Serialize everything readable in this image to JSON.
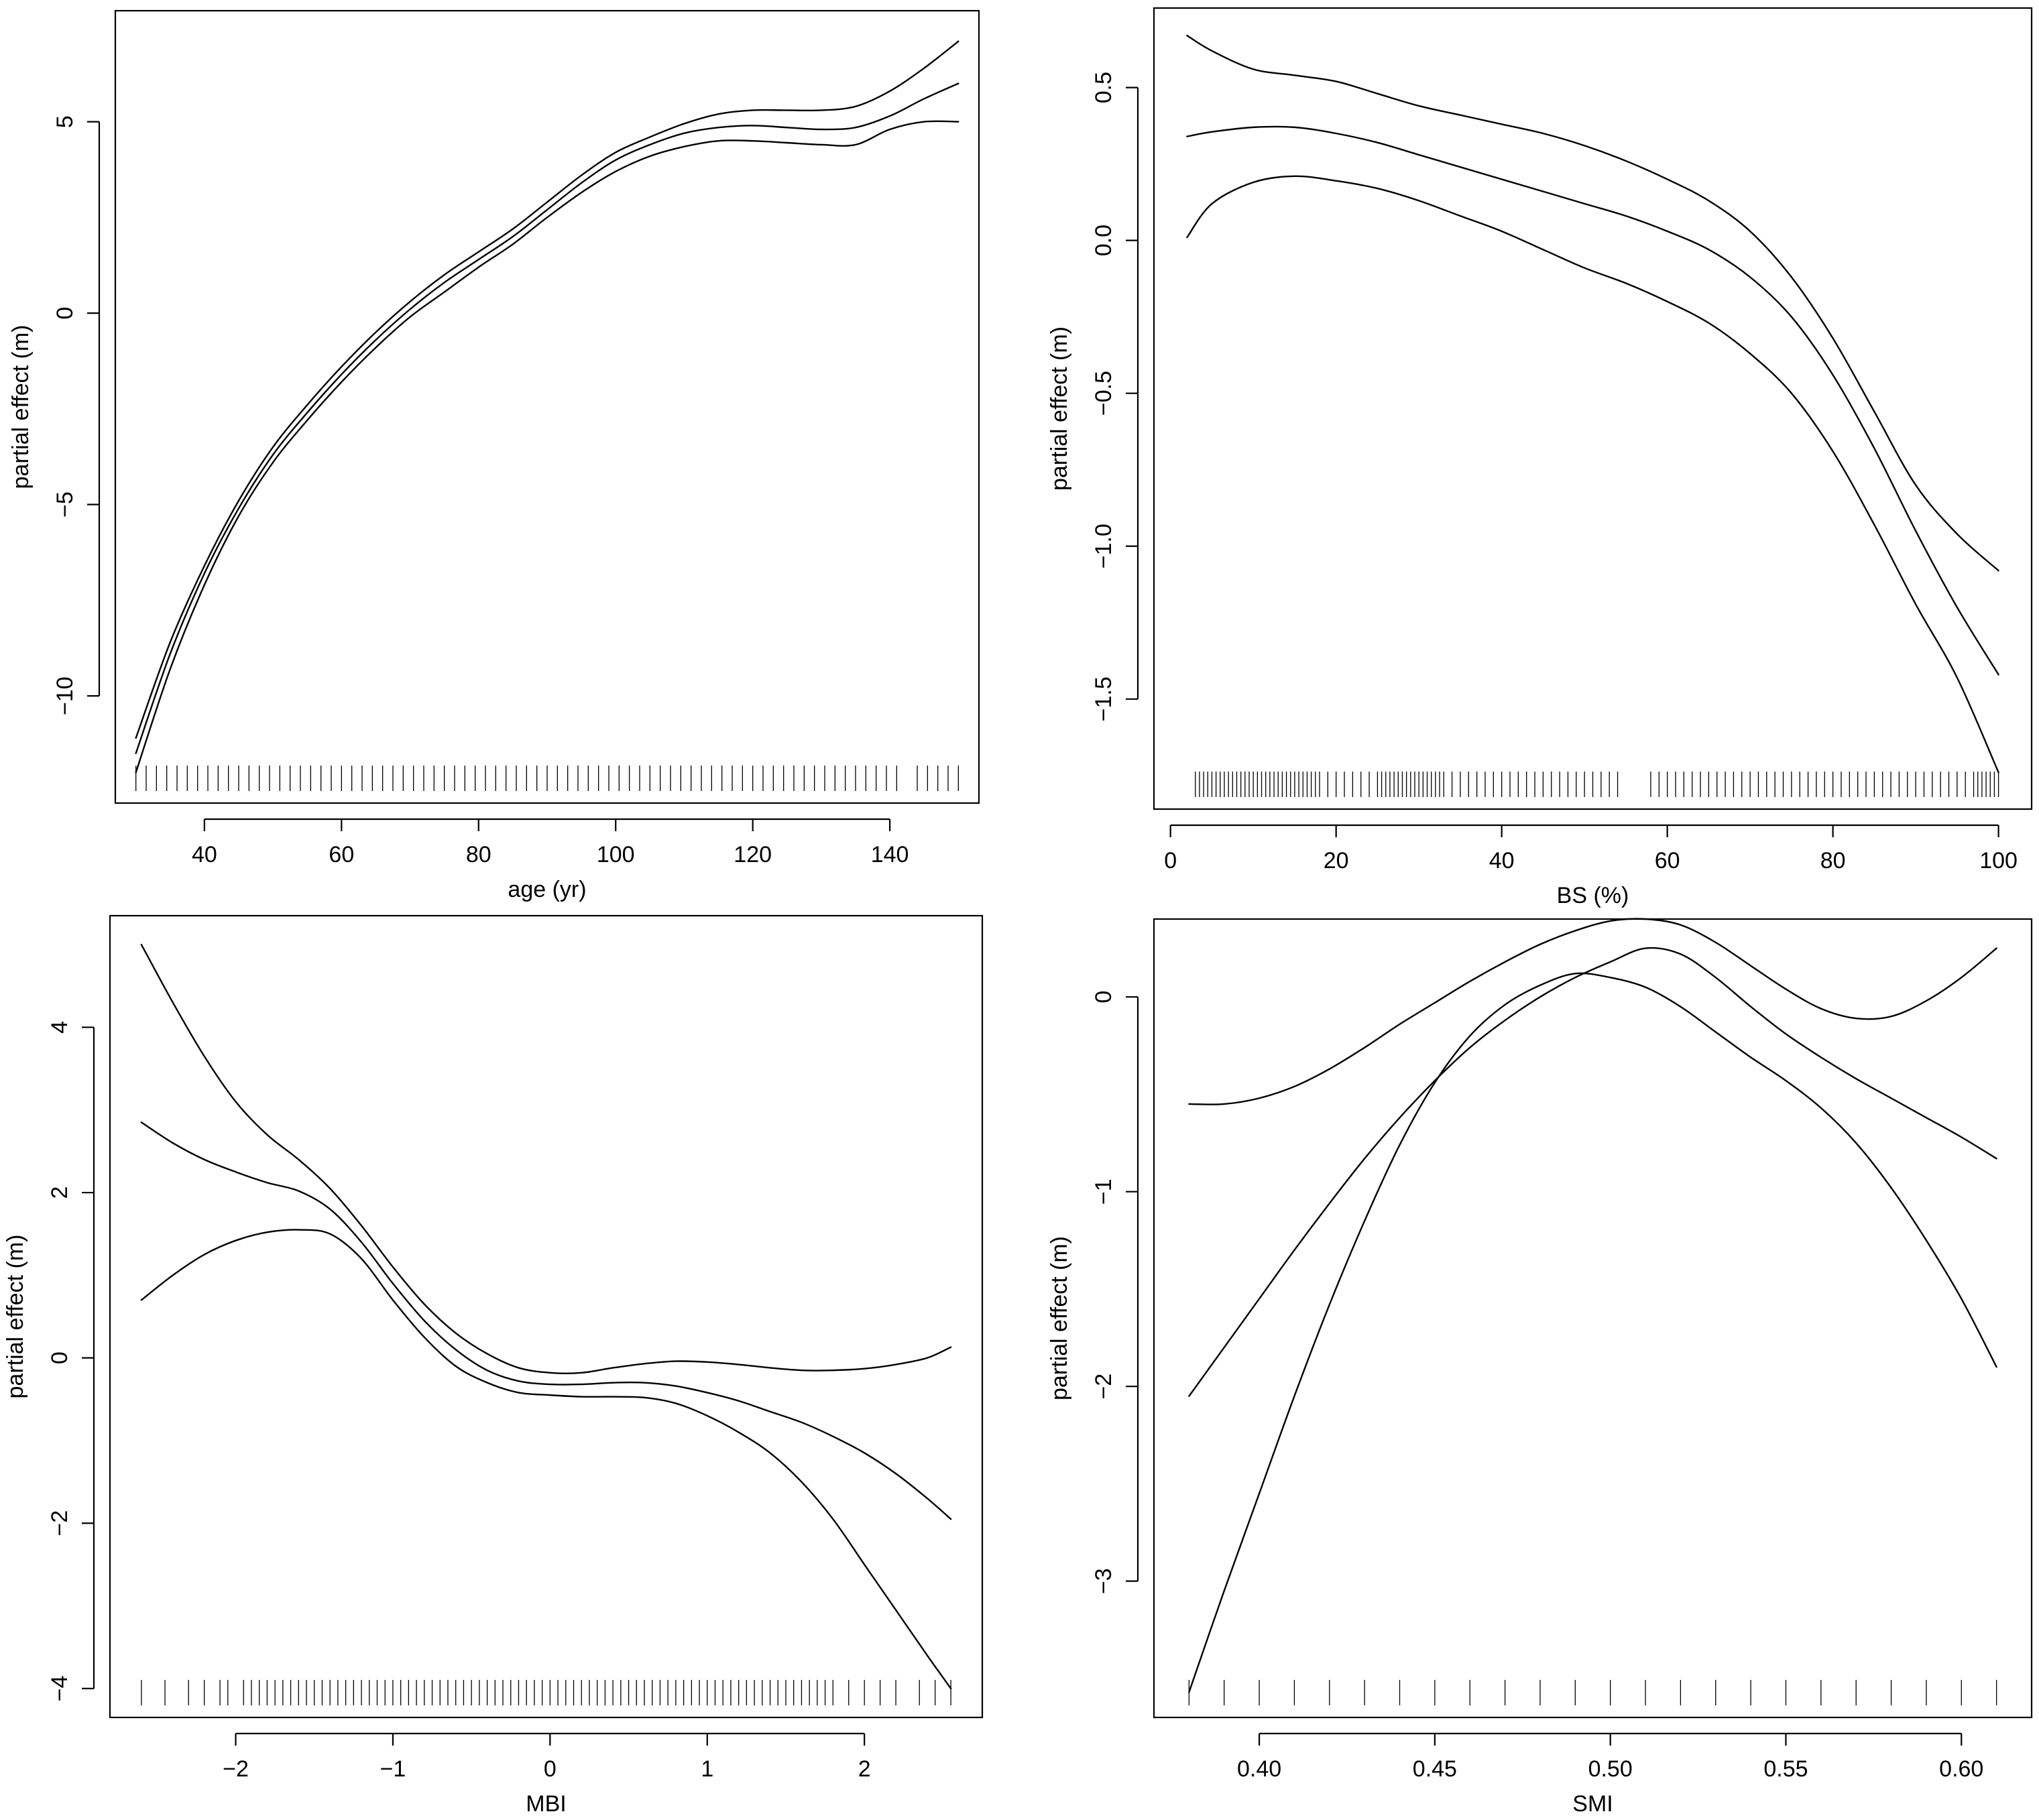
{
  "chart_data": [
    {
      "type": "line",
      "xlabel": "age (yr)",
      "ylabel": "partial effect (m)",
      "xlim": [
        27,
        153
      ],
      "ylim": [
        -12.8,
        7.9
      ],
      "xticks": [
        40,
        60,
        80,
        100,
        120,
        140
      ],
      "yticks": [
        -10,
        -5,
        0,
        5
      ],
      "xtick_labels": [
        "40",
        "60",
        "80",
        "100",
        "120",
        "140"
      ],
      "ytick_labels": [
        "−10",
        "−5",
        "0",
        "5"
      ],
      "series": [
        {
          "name": "upper",
          "x": [
            30,
            35,
            40,
            45,
            50,
            55,
            60,
            65,
            70,
            75,
            80,
            85,
            90,
            95,
            100,
            105,
            110,
            115,
            120,
            125,
            130,
            135,
            140,
            145,
            150
          ],
          "y": [
            -11.1,
            -8.6,
            -6.6,
            -4.9,
            -3.5,
            -2.4,
            -1.4,
            -0.5,
            0.3,
            1.0,
            1.6,
            2.2,
            2.9,
            3.6,
            4.2,
            4.6,
            4.95,
            5.2,
            5.3,
            5.3,
            5.3,
            5.4,
            5.8,
            6.4,
            7.1
          ]
        },
        {
          "name": "estimate",
          "x": [
            30,
            35,
            40,
            45,
            50,
            55,
            60,
            65,
            70,
            75,
            80,
            85,
            90,
            95,
            100,
            105,
            110,
            115,
            120,
            125,
            130,
            135,
            140,
            145,
            150
          ],
          "y": [
            -11.5,
            -8.9,
            -6.8,
            -5.1,
            -3.7,
            -2.6,
            -1.6,
            -0.7,
            0.1,
            0.8,
            1.4,
            2.0,
            2.7,
            3.4,
            4.0,
            4.4,
            4.7,
            4.85,
            4.9,
            4.85,
            4.8,
            4.85,
            5.15,
            5.6,
            6.0
          ]
        },
        {
          "name": "lower",
          "x": [
            30,
            35,
            40,
            45,
            50,
            55,
            60,
            65,
            70,
            75,
            80,
            85,
            90,
            95,
            100,
            105,
            110,
            115,
            120,
            125,
            130,
            135,
            140,
            145,
            150
          ],
          "y": [
            -12.0,
            -9.3,
            -7.1,
            -5.3,
            -3.9,
            -2.8,
            -1.8,
            -0.9,
            -0.1,
            0.55,
            1.2,
            1.8,
            2.5,
            3.15,
            3.7,
            4.1,
            4.35,
            4.5,
            4.5,
            4.45,
            4.4,
            4.4,
            4.8,
            5.0,
            5.0
          ]
        }
      ],
      "rug": [
        30,
        31.5,
        33,
        34.5,
        36,
        37.5,
        39,
        40.5,
        42,
        43.5,
        45,
        46.5,
        48,
        49.5,
        51,
        52.5,
        54,
        55.5,
        57,
        58.5,
        60,
        61.5,
        63,
        64.5,
        66,
        67.5,
        69,
        70.5,
        72,
        73.5,
        75,
        76.5,
        78,
        79.5,
        81,
        82.5,
        84,
        85.5,
        87,
        88.5,
        90,
        91.5,
        93,
        94.5,
        96,
        97.5,
        99,
        100.5,
        102,
        103.5,
        105,
        106.5,
        108,
        109.5,
        111,
        112.5,
        114,
        115.5,
        117,
        118.5,
        120,
        121.5,
        123,
        124.5,
        126,
        127.5,
        129,
        130.5,
        132,
        133.5,
        135,
        136.5,
        138,
        139.5,
        141,
        144,
        145.5,
        147,
        148.5,
        150
      ]
    },
    {
      "type": "line",
      "xlabel": "BS (%)",
      "ylabel": "partial effect (m)",
      "xlim": [
        -2,
        104
      ],
      "ylim": [
        -1.86,
        0.76
      ],
      "xticks": [
        0,
        20,
        40,
        60,
        80,
        100
      ],
      "yticks": [
        -1.5,
        -1.0,
        -0.5,
        0.0,
        0.5
      ],
      "xtick_labels": [
        "0",
        "20",
        "40",
        "60",
        "80",
        "100"
      ],
      "ytick_labels": [
        "−1.5",
        "−1.0",
        "−0.5",
        "0.0",
        "0.5"
      ],
      "series": [
        {
          "name": "upper",
          "x": [
            2,
            5,
            10,
            15,
            20,
            25,
            30,
            35,
            40,
            45,
            50,
            55,
            60,
            65,
            70,
            75,
            80,
            85,
            90,
            95,
            100
          ],
          "y": [
            0.67,
            0.62,
            0.56,
            0.54,
            0.52,
            0.48,
            0.44,
            0.41,
            0.38,
            0.35,
            0.31,
            0.26,
            0.2,
            0.13,
            0.03,
            -0.12,
            -0.32,
            -0.56,
            -0.8,
            -0.96,
            -1.08
          ]
        },
        {
          "name": "estimate",
          "x": [
            2,
            5,
            10,
            15,
            20,
            25,
            30,
            35,
            40,
            45,
            50,
            55,
            60,
            65,
            70,
            75,
            80,
            85,
            90,
            95,
            100
          ],
          "y": [
            0.34,
            0.355,
            0.37,
            0.37,
            0.35,
            0.32,
            0.28,
            0.24,
            0.2,
            0.16,
            0.12,
            0.08,
            0.03,
            -0.03,
            -0.12,
            -0.25,
            -0.44,
            -0.68,
            -0.95,
            -1.2,
            -1.42
          ]
        },
        {
          "name": "lower",
          "x": [
            2,
            5,
            10,
            15,
            20,
            25,
            30,
            35,
            40,
            45,
            50,
            55,
            60,
            65,
            70,
            75,
            80,
            85,
            90,
            95,
            100
          ],
          "y": [
            0.01,
            0.12,
            0.19,
            0.21,
            0.195,
            0.17,
            0.13,
            0.08,
            0.03,
            -0.03,
            -0.09,
            -0.14,
            -0.2,
            -0.27,
            -0.37,
            -0.5,
            -0.69,
            -0.93,
            -1.19,
            -1.43,
            -1.74
          ]
        }
      ],
      "rug": [
        3,
        3.5,
        4,
        4.5,
        5,
        5.5,
        6,
        6.5,
        7,
        7.5,
        8,
        8.5,
        9,
        9.5,
        10,
        10.5,
        11,
        11.5,
        12,
        12.5,
        13,
        13.5,
        14,
        14.5,
        15,
        15.5,
        16,
        16.5,
        17,
        17.5,
        18,
        19,
        20,
        21,
        22,
        23,
        24,
        25,
        25.5,
        26,
        26.5,
        27,
        27.5,
        28,
        28.5,
        29,
        29.5,
        30,
        30.5,
        31,
        31.5,
        32,
        32.5,
        33,
        34,
        35,
        36,
        37,
        38,
        39,
        40,
        41,
        42,
        43,
        44,
        45,
        46,
        47,
        48,
        49,
        50,
        51,
        52,
        53,
        54,
        58,
        59,
        60,
        61,
        62,
        63,
        64,
        65,
        66,
        67,
        68,
        69,
        70,
        71,
        72,
        73,
        74,
        75,
        76,
        77,
        78,
        79,
        80,
        81,
        82,
        83,
        84,
        85,
        86,
        87,
        88,
        89,
        90,
        91,
        92,
        93,
        94,
        95,
        96,
        97,
        97.5,
        98,
        98.5,
        99,
        99.5,
        100
      ]
    },
    {
      "type": "line",
      "xlabel": "MBI",
      "ylabel": "partial effect (m)",
      "xlim": [
        -2.8,
        2.75
      ],
      "ylim": [
        -4.35,
        5.35
      ],
      "xticks": [
        -2,
        -1,
        0,
        1,
        2
      ],
      "yticks": [
        -4,
        -2,
        0,
        2,
        4
      ],
      "xtick_labels": [
        "−2",
        "−1",
        "0",
        "1",
        "2"
      ],
      "ytick_labels": [
        "−4",
        "−2",
        "0",
        "2",
        "4"
      ],
      "series": [
        {
          "name": "upper",
          "x": [
            -2.6,
            -2.4,
            -2.2,
            -2.0,
            -1.8,
            -1.6,
            -1.4,
            -1.2,
            -1.0,
            -0.8,
            -0.6,
            -0.4,
            -0.2,
            0.0,
            0.2,
            0.4,
            0.6,
            0.8,
            1.0,
            1.2,
            1.4,
            1.6,
            1.8,
            2.0,
            2.2,
            2.4,
            2.55
          ],
          "y": [
            5.0,
            4.3,
            3.65,
            3.1,
            2.7,
            2.4,
            2.05,
            1.6,
            1.1,
            0.65,
            0.3,
            0.05,
            -0.12,
            -0.18,
            -0.18,
            -0.12,
            -0.07,
            -0.04,
            -0.05,
            -0.08,
            -0.12,
            -0.15,
            -0.15,
            -0.13,
            -0.08,
            0.0,
            0.13
          ]
        },
        {
          "name": "estimate",
          "x": [
            -2.6,
            -2.4,
            -2.2,
            -2.0,
            -1.8,
            -1.6,
            -1.4,
            -1.2,
            -1.0,
            -0.8,
            -0.6,
            -0.4,
            -0.2,
            0.0,
            0.2,
            0.4,
            0.6,
            0.8,
            1.0,
            1.2,
            1.4,
            1.6,
            1.8,
            2.0,
            2.2,
            2.4,
            2.55
          ],
          "y": [
            2.85,
            2.6,
            2.4,
            2.25,
            2.12,
            2.02,
            1.8,
            1.4,
            0.9,
            0.45,
            0.1,
            -0.15,
            -0.28,
            -0.32,
            -0.32,
            -0.3,
            -0.3,
            -0.34,
            -0.42,
            -0.52,
            -0.65,
            -0.78,
            -0.95,
            -1.15,
            -1.4,
            -1.7,
            -1.95
          ]
        },
        {
          "name": "lower",
          "x": [
            -2.6,
            -2.4,
            -2.2,
            -2.0,
            -1.8,
            -1.6,
            -1.4,
            -1.2,
            -1.0,
            -0.8,
            -0.6,
            -0.4,
            -0.2,
            0.0,
            0.2,
            0.4,
            0.6,
            0.8,
            1.0,
            1.2,
            1.4,
            1.6,
            1.8,
            2.0,
            2.2,
            2.4,
            2.55
          ],
          "y": [
            0.7,
            1.0,
            1.25,
            1.42,
            1.52,
            1.55,
            1.5,
            1.2,
            0.7,
            0.25,
            -0.1,
            -0.3,
            -0.42,
            -0.45,
            -0.47,
            -0.47,
            -0.48,
            -0.55,
            -0.7,
            -0.9,
            -1.15,
            -1.5,
            -1.95,
            -2.5,
            -3.05,
            -3.6,
            -4.0
          ]
        }
      ],
      "rug": [
        -2.6,
        -2.45,
        -2.3,
        -2.2,
        -2.1,
        -2.05,
        -1.95,
        -1.9,
        -1.85,
        -1.8,
        -1.75,
        -1.7,
        -1.65,
        -1.6,
        -1.55,
        -1.5,
        -1.45,
        -1.4,
        -1.35,
        -1.3,
        -1.25,
        -1.2,
        -1.15,
        -1.1,
        -1.05,
        -1.0,
        -0.95,
        -0.9,
        -0.85,
        -0.8,
        -0.75,
        -0.7,
        -0.65,
        -0.6,
        -0.55,
        -0.5,
        -0.45,
        -0.4,
        -0.35,
        -0.3,
        -0.25,
        -0.2,
        -0.15,
        -0.1,
        -0.05,
        0.0,
        0.05,
        0.1,
        0.15,
        0.2,
        0.25,
        0.3,
        0.35,
        0.4,
        0.45,
        0.5,
        0.55,
        0.6,
        0.65,
        0.7,
        0.75,
        0.8,
        0.85,
        0.9,
        0.95,
        1.0,
        1.05,
        1.1,
        1.15,
        1.2,
        1.25,
        1.3,
        1.35,
        1.4,
        1.45,
        1.5,
        1.55,
        1.6,
        1.65,
        1.7,
        1.75,
        1.8,
        1.9,
        2.0,
        2.1,
        2.2,
        2.35,
        2.45,
        2.55
      ]
    },
    {
      "type": "line",
      "xlabel": "SMI",
      "ylabel": "partial effect (m)",
      "xlim": [
        0.37,
        0.62
      ],
      "ylim": [
        -3.7,
        0.4
      ],
      "xticks": [
        0.4,
        0.45,
        0.5,
        0.55,
        0.6
      ],
      "yticks": [
        -3,
        -2,
        -1,
        0
      ],
      "xtick_labels": [
        "0.40",
        "0.45",
        "0.50",
        "0.55",
        "0.60"
      ],
      "ytick_labels": [
        "−3",
        "−2",
        "−1",
        "0"
      ],
      "series": [
        {
          "name": "upper",
          "x": [
            0.38,
            0.39,
            0.4,
            0.41,
            0.42,
            0.43,
            0.44,
            0.45,
            0.46,
            0.47,
            0.48,
            0.49,
            0.5,
            0.51,
            0.52,
            0.53,
            0.54,
            0.55,
            0.56,
            0.57,
            0.58,
            0.59,
            0.6,
            0.61
          ],
          "y": [
            -0.55,
            -0.55,
            -0.52,
            -0.46,
            -0.37,
            -0.26,
            -0.14,
            -0.03,
            0.08,
            0.18,
            0.27,
            0.34,
            0.39,
            0.4,
            0.37,
            0.28,
            0.16,
            0.04,
            -0.06,
            -0.11,
            -0.1,
            -0.02,
            0.1,
            0.25
          ]
        },
        {
          "name": "estimate",
          "x": [
            0.38,
            0.39,
            0.4,
            0.41,
            0.42,
            0.43,
            0.44,
            0.45,
            0.46,
            0.47,
            0.48,
            0.49,
            0.5,
            0.51,
            0.52,
            0.53,
            0.54,
            0.55,
            0.56,
            0.57,
            0.58,
            0.59,
            0.6,
            0.61
          ],
          "y": [
            -2.05,
            -1.8,
            -1.55,
            -1.3,
            -1.06,
            -0.83,
            -0.62,
            -0.43,
            -0.26,
            -0.12,
            0.0,
            0.1,
            0.18,
            0.25,
            0.22,
            0.1,
            -0.05,
            -0.19,
            -0.31,
            -0.42,
            -0.52,
            -0.62,
            -0.72,
            -0.83
          ]
        },
        {
          "name": "lower",
          "x": [
            0.38,
            0.39,
            0.4,
            0.41,
            0.42,
            0.43,
            0.44,
            0.45,
            0.46,
            0.47,
            0.48,
            0.49,
            0.5,
            0.51,
            0.52,
            0.53,
            0.54,
            0.55,
            0.56,
            0.57,
            0.58,
            0.59,
            0.6,
            0.61
          ],
          "y": [
            -3.57,
            -3.05,
            -2.55,
            -2.05,
            -1.58,
            -1.15,
            -0.76,
            -0.44,
            -0.2,
            -0.04,
            0.06,
            0.12,
            0.1,
            0.05,
            -0.05,
            -0.18,
            -0.31,
            -0.43,
            -0.57,
            -0.75,
            -0.98,
            -1.25,
            -1.55,
            -1.9
          ]
        }
      ],
      "rug": [
        0.38,
        0.39,
        0.4,
        0.41,
        0.42,
        0.43,
        0.44,
        0.45,
        0.46,
        0.47,
        0.48,
        0.49,
        0.5,
        0.51,
        0.52,
        0.53,
        0.54,
        0.55,
        0.56,
        0.57,
        0.58,
        0.59,
        0.6,
        0.61
      ]
    }
  ]
}
